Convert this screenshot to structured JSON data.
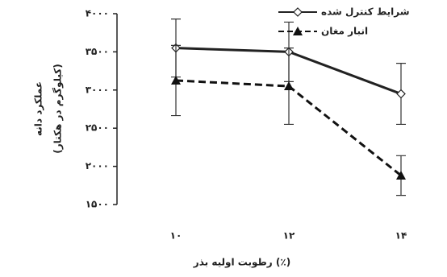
{
  "chart_data": {
    "type": "line",
    "categories": [
      "۱۰",
      "۱۲",
      "۱۴"
    ],
    "series": [
      {
        "name": "شرایط کنترل شده",
        "color": "#222222",
        "line_style": "solid",
        "marker": "diamond",
        "values": [
          3550,
          3500,
          2950
        ],
        "errors": [
          380,
          390,
          400
        ]
      },
      {
        "name": "انبار مغان",
        "color": "#111111",
        "line_style": "dashed",
        "marker": "triangle",
        "values": [
          3125,
          3050,
          1880
        ],
        "errors": [
          460,
          500,
          260
        ]
      }
    ],
    "ylim": [
      1500,
      4000
    ],
    "yticks": [
      {
        "value": 1500,
        "label": "۱۵۰۰"
      },
      {
        "value": 2000,
        "label": "۲۰۰۰"
      },
      {
        "value": 2500,
        "label": "۲۵۰۰"
      },
      {
        "value": 3000,
        "label": "۳۰۰۰"
      },
      {
        "value": 3500,
        "label": "۳۵۰۰"
      },
      {
        "value": 4000,
        "label": "۴۰۰۰"
      }
    ],
    "y_label": [
      "عملکرد دانه",
      "(کیلوگرم در هکتار)"
    ],
    "x_label": "رطوبت اولیه بذر (٪)",
    "legend": "top-right"
  }
}
